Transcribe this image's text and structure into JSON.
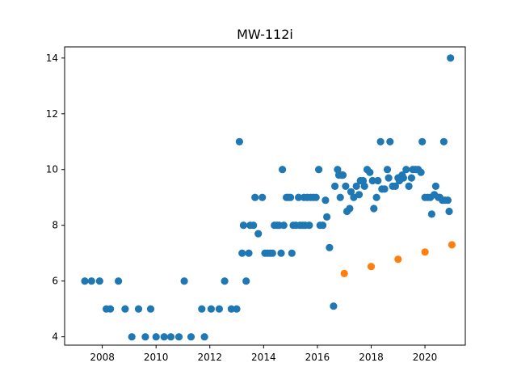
{
  "chart_data": {
    "type": "scatter",
    "title": "MW-112i",
    "xlabel": "",
    "ylabel": "",
    "xlim": [
      2006.6,
      2021.5
    ],
    "ylim": [
      3.7,
      14.4
    ],
    "xticks": [
      2008,
      2010,
      2012,
      2014,
      2016,
      2018,
      2020
    ],
    "xtick_labels": [
      "2008",
      "2010",
      "2012",
      "2014",
      "2016",
      "2018",
      "2020"
    ],
    "yticks": [
      4,
      6,
      8,
      10,
      12,
      14
    ],
    "ytick_labels": [
      "4",
      "6",
      "8",
      "10",
      "12",
      "14"
    ],
    "grid": false,
    "legend": "none",
    "series": [
      {
        "color": "#1f77b4",
        "points": [
          [
            2007.35,
            6
          ],
          [
            2007.6,
            6
          ],
          [
            2007.9,
            6
          ],
          [
            2008.15,
            5
          ],
          [
            2008.3,
            5
          ],
          [
            2008.6,
            6
          ],
          [
            2008.85,
            5
          ],
          [
            2009.1,
            4
          ],
          [
            2009.35,
            5
          ],
          [
            2009.6,
            4
          ],
          [
            2009.8,
            5
          ],
          [
            2010.0,
            4
          ],
          [
            2010.3,
            4
          ],
          [
            2010.55,
            4
          ],
          [
            2010.85,
            4
          ],
          [
            2011.05,
            6
          ],
          [
            2011.3,
            4
          ],
          [
            2011.7,
            5
          ],
          [
            2011.8,
            4
          ],
          [
            2012.05,
            5
          ],
          [
            2012.35,
            5
          ],
          [
            2012.55,
            6
          ],
          [
            2012.8,
            5
          ],
          [
            2013.0,
            5
          ],
          [
            2013.1,
            11
          ],
          [
            2013.2,
            7
          ],
          [
            2013.25,
            8
          ],
          [
            2013.35,
            6
          ],
          [
            2013.45,
            7
          ],
          [
            2013.5,
            8
          ],
          [
            2013.62,
            8
          ],
          [
            2013.68,
            9
          ],
          [
            2013.8,
            7.7
          ],
          [
            2013.95,
            9
          ],
          [
            2014.05,
            7
          ],
          [
            2014.15,
            7
          ],
          [
            2014.25,
            7
          ],
          [
            2014.33,
            7
          ],
          [
            2014.4,
            8
          ],
          [
            2014.5,
            8
          ],
          [
            2014.58,
            8
          ],
          [
            2014.65,
            7
          ],
          [
            2014.7,
            10
          ],
          [
            2014.75,
            8
          ],
          [
            2014.85,
            9
          ],
          [
            2014.92,
            9
          ],
          [
            2015.0,
            9
          ],
          [
            2015.05,
            7
          ],
          [
            2015.1,
            8
          ],
          [
            2015.2,
            8
          ],
          [
            2015.3,
            9
          ],
          [
            2015.35,
            8
          ],
          [
            2015.45,
            8
          ],
          [
            2015.5,
            9
          ],
          [
            2015.55,
            8
          ],
          [
            2015.62,
            9
          ],
          [
            2015.7,
            8
          ],
          [
            2015.75,
            9
          ],
          [
            2015.85,
            9
          ],
          [
            2015.95,
            9
          ],
          [
            2016.05,
            10
          ],
          [
            2016.1,
            8
          ],
          [
            2016.2,
            8
          ],
          [
            2016.3,
            8.9
          ],
          [
            2016.35,
            8.3
          ],
          [
            2016.45,
            7.2
          ],
          [
            2016.6,
            5.1
          ],
          [
            2016.65,
            9.4
          ],
          [
            2016.75,
            10
          ],
          [
            2016.8,
            9.8
          ],
          [
            2016.85,
            9
          ],
          [
            2016.9,
            9.8
          ],
          [
            2016.95,
            9.8
          ],
          [
            2017.05,
            9.4
          ],
          [
            2017.1,
            8.5
          ],
          [
            2017.2,
            8.6
          ],
          [
            2017.25,
            9.2
          ],
          [
            2017.35,
            9
          ],
          [
            2017.45,
            9.4
          ],
          [
            2017.55,
            9.1
          ],
          [
            2017.6,
            9.6
          ],
          [
            2017.7,
            9.6
          ],
          [
            2017.75,
            9.4
          ],
          [
            2017.85,
            10
          ],
          [
            2017.95,
            9.9
          ],
          [
            2018.05,
            9.6
          ],
          [
            2018.1,
            8.6
          ],
          [
            2018.2,
            9
          ],
          [
            2018.25,
            9.6
          ],
          [
            2018.35,
            11
          ],
          [
            2018.4,
            9.3
          ],
          [
            2018.5,
            9.3
          ],
          [
            2018.6,
            10
          ],
          [
            2018.65,
            9.7
          ],
          [
            2018.7,
            11
          ],
          [
            2018.8,
            9.4
          ],
          [
            2018.9,
            9.4
          ],
          [
            2019.0,
            9.7
          ],
          [
            2019.05,
            9.6
          ],
          [
            2019.15,
            9.8
          ],
          [
            2019.2,
            9.7
          ],
          [
            2019.3,
            10
          ],
          [
            2019.4,
            9.4
          ],
          [
            2019.5,
            9.7
          ],
          [
            2019.55,
            10
          ],
          [
            2019.65,
            10
          ],
          [
            2019.75,
            10
          ],
          [
            2019.85,
            9.9
          ],
          [
            2019.9,
            11
          ],
          [
            2020.0,
            9
          ],
          [
            2020.1,
            9
          ],
          [
            2020.2,
            9
          ],
          [
            2020.25,
            8.4
          ],
          [
            2020.35,
            9.1
          ],
          [
            2020.4,
            9.4
          ],
          [
            2020.5,
            9
          ],
          [
            2020.55,
            9
          ],
          [
            2020.65,
            8.9
          ],
          [
            2020.7,
            11
          ],
          [
            2020.75,
            8.9
          ],
          [
            2020.85,
            8.9
          ],
          [
            2020.9,
            8.5
          ],
          [
            2020.95,
            14
          ]
        ]
      },
      {
        "color": "#ff7f0e",
        "points": [
          [
            2017.0,
            6.27
          ],
          [
            2018.0,
            6.52
          ],
          [
            2019.0,
            6.78
          ],
          [
            2020.0,
            7.04
          ],
          [
            2021.0,
            7.3
          ]
        ]
      }
    ]
  }
}
